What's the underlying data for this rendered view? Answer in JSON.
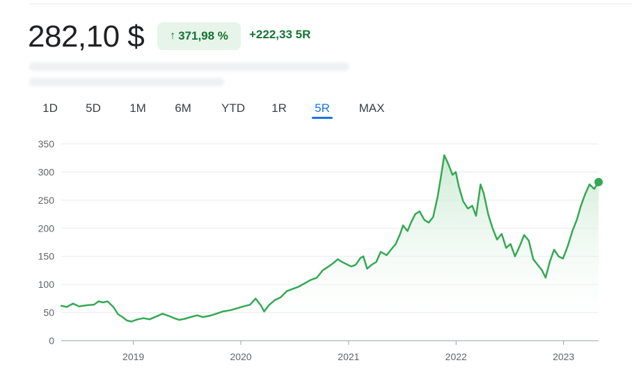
{
  "header": {
    "price": "282,10 $",
    "change_percent": "371,98 %",
    "change_arrow": "↑",
    "change_abs": "+222,33 5R"
  },
  "tabs": {
    "items": [
      "1D",
      "5D",
      "1M",
      "6M",
      "YTD",
      "1R",
      "5R",
      "MAX"
    ],
    "active_index": 6
  },
  "colors": {
    "line": "#34a853",
    "area_top": "#c9e9d1",
    "active_tab": "#1a73e8",
    "badge_bg": "#e6f4ea",
    "badge_text": "#137333"
  },
  "chart_data": {
    "type": "area",
    "title": "",
    "xlabel": "",
    "ylabel": "",
    "ylim": [
      0,
      350
    ],
    "yticks": [
      "0",
      "50",
      "100",
      "150",
      "200",
      "250",
      "300",
      "350"
    ],
    "xticks": [
      {
        "label": "2019",
        "x": "2019-01-01"
      },
      {
        "label": "2020",
        "x": "2020-01-01"
      },
      {
        "label": "2021",
        "x": "2021-01-01"
      },
      {
        "label": "2022",
        "x": "2022-01-01"
      },
      {
        "label": "2023",
        "x": "2023-01-01"
      }
    ],
    "grid": true,
    "series": [
      {
        "points": [
          [
            "2018-05-01",
            62
          ],
          [
            "2018-05-20",
            60
          ],
          [
            "2018-06-10",
            66
          ],
          [
            "2018-07-01",
            61
          ],
          [
            "2018-07-25",
            63
          ],
          [
            "2018-08-20",
            64
          ],
          [
            "2018-09-05",
            70
          ],
          [
            "2018-09-20",
            68
          ],
          [
            "2018-10-05",
            70
          ],
          [
            "2018-10-25",
            60
          ],
          [
            "2018-11-10",
            47
          ],
          [
            "2018-11-25",
            42
          ],
          [
            "2018-12-10",
            36
          ],
          [
            "2018-12-25",
            34
          ],
          [
            "2019-01-15",
            38
          ],
          [
            "2019-02-05",
            40
          ],
          [
            "2019-02-25",
            38
          ],
          [
            "2019-03-20",
            43
          ],
          [
            "2019-04-10",
            48
          ],
          [
            "2019-05-01",
            44
          ],
          [
            "2019-05-20",
            40
          ],
          [
            "2019-06-05",
            37
          ],
          [
            "2019-06-25",
            39
          ],
          [
            "2019-07-15",
            42
          ],
          [
            "2019-08-05",
            45
          ],
          [
            "2019-08-25",
            42
          ],
          [
            "2019-09-15",
            44
          ],
          [
            "2019-10-10",
            48
          ],
          [
            "2019-11-01",
            52
          ],
          [
            "2019-11-25",
            54
          ],
          [
            "2019-12-15",
            57
          ],
          [
            "2020-01-10",
            61
          ],
          [
            "2020-02-01",
            64
          ],
          [
            "2020-02-20",
            75
          ],
          [
            "2020-03-10",
            62
          ],
          [
            "2020-03-20",
            52
          ],
          [
            "2020-04-05",
            63
          ],
          [
            "2020-04-25",
            72
          ],
          [
            "2020-05-15",
            77
          ],
          [
            "2020-06-05",
            88
          ],
          [
            "2020-06-25",
            92
          ],
          [
            "2020-07-15",
            96
          ],
          [
            "2020-08-05",
            102
          ],
          [
            "2020-08-25",
            108
          ],
          [
            "2020-09-15",
            112
          ],
          [
            "2020-10-05",
            125
          ],
          [
            "2020-10-25",
            132
          ],
          [
            "2020-11-10",
            138
          ],
          [
            "2020-11-25",
            145
          ],
          [
            "2020-12-10",
            140
          ],
          [
            "2020-12-25",
            136
          ],
          [
            "2021-01-10",
            132
          ],
          [
            "2021-01-25",
            135
          ],
          [
            "2021-02-10",
            147
          ],
          [
            "2021-02-20",
            150
          ],
          [
            "2021-03-05",
            128
          ],
          [
            "2021-03-20",
            135
          ],
          [
            "2021-04-05",
            140
          ],
          [
            "2021-04-20",
            158
          ],
          [
            "2021-05-10",
            152
          ],
          [
            "2021-05-25",
            162
          ],
          [
            "2021-06-10",
            172
          ],
          [
            "2021-06-25",
            190
          ],
          [
            "2021-07-05",
            205
          ],
          [
            "2021-07-20",
            195
          ],
          [
            "2021-08-01",
            210
          ],
          [
            "2021-08-15",
            225
          ],
          [
            "2021-08-30",
            230
          ],
          [
            "2021-09-15",
            215
          ],
          [
            "2021-09-30",
            210
          ],
          [
            "2021-10-15",
            220
          ],
          [
            "2021-10-30",
            255
          ],
          [
            "2021-11-10",
            290
          ],
          [
            "2021-11-22",
            330
          ],
          [
            "2021-12-05",
            315
          ],
          [
            "2021-12-20",
            295
          ],
          [
            "2021-12-31",
            300
          ],
          [
            "2022-01-10",
            275
          ],
          [
            "2022-01-25",
            248
          ],
          [
            "2022-02-10",
            235
          ],
          [
            "2022-02-25",
            240
          ],
          [
            "2022-03-10",
            222
          ],
          [
            "2022-03-25",
            278
          ],
          [
            "2022-04-05",
            262
          ],
          [
            "2022-04-20",
            225
          ],
          [
            "2022-05-05",
            200
          ],
          [
            "2022-05-20",
            180
          ],
          [
            "2022-06-05",
            190
          ],
          [
            "2022-06-20",
            165
          ],
          [
            "2022-07-05",
            172
          ],
          [
            "2022-07-20",
            150
          ],
          [
            "2022-08-05",
            168
          ],
          [
            "2022-08-20",
            188
          ],
          [
            "2022-09-05",
            178
          ],
          [
            "2022-09-20",
            145
          ],
          [
            "2022-10-05",
            135
          ],
          [
            "2022-10-20",
            125
          ],
          [
            "2022-11-01",
            112
          ],
          [
            "2022-11-15",
            140
          ],
          [
            "2022-11-30",
            162
          ],
          [
            "2022-12-15",
            150
          ],
          [
            "2022-12-30",
            146
          ],
          [
            "2023-01-15",
            168
          ],
          [
            "2023-01-31",
            195
          ],
          [
            "2023-02-15",
            215
          ],
          [
            "2023-03-01",
            240
          ],
          [
            "2023-03-15",
            260
          ],
          [
            "2023-03-30",
            278
          ],
          [
            "2023-04-15",
            270
          ],
          [
            "2023-04-30",
            282.1
          ]
        ]
      }
    ]
  }
}
